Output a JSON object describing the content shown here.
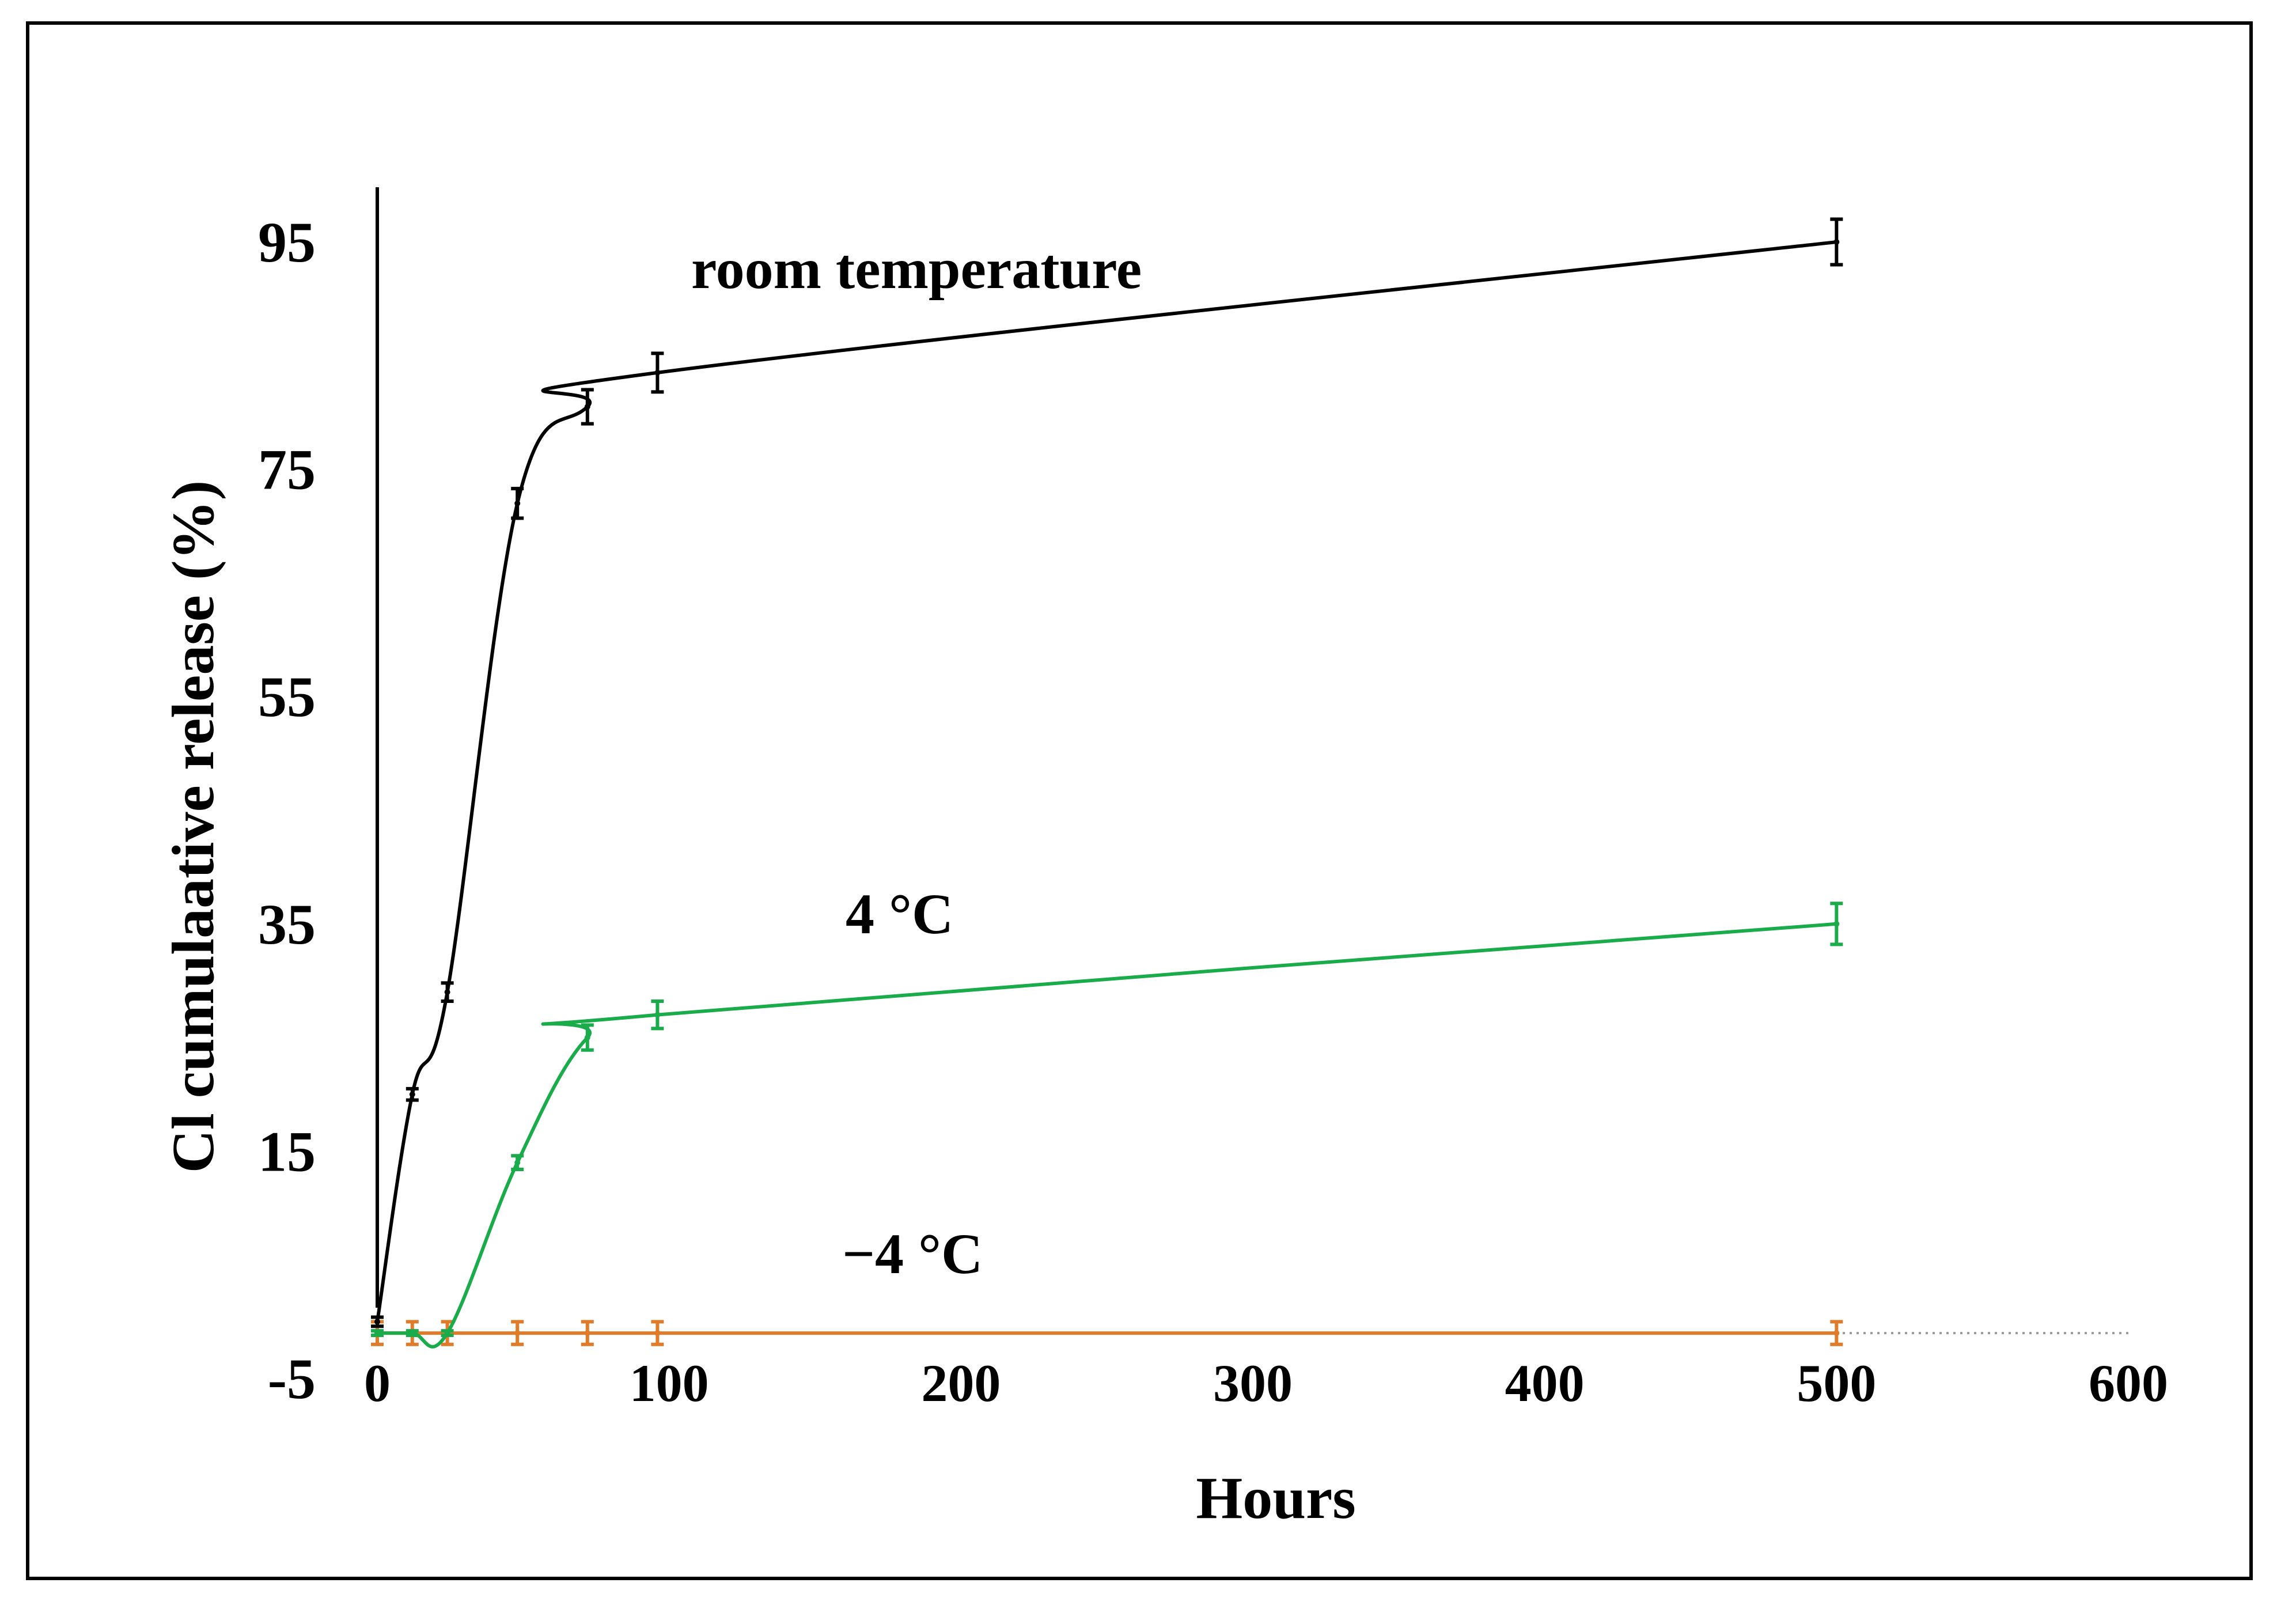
{
  "chart_data": {
    "type": "line",
    "xlabel": "Hours",
    "ylabel": "Cl cumulaative release (%)",
    "xlim": [
      0,
      600
    ],
    "ylim": [
      -5,
      100
    ],
    "x_ticks": [
      0,
      100,
      200,
      300,
      400,
      500,
      600
    ],
    "y_ticks": [
      -5,
      15,
      35,
      55,
      75,
      95
    ],
    "x_tick_labels": [
      "0",
      "100",
      "200",
      "300",
      "400",
      "500",
      "600"
    ],
    "y_tick_labels": [
      "-5",
      "15",
      "35",
      "55",
      "75",
      "95"
    ],
    "grid": false,
    "legend": "none",
    "series": [
      {
        "name": "room temperature",
        "color": "#000000",
        "x": [
          0,
          12,
          24,
          48,
          72,
          96,
          500
        ],
        "y": [
          0,
          20,
          29,
          72,
          80.5,
          83.5,
          95
        ],
        "error": [
          0.4,
          0.5,
          0.8,
          1.3,
          1.5,
          1.7,
          2.0
        ]
      },
      {
        "name": "4 °C",
        "color": "#1aab4b",
        "x": [
          0,
          12,
          24,
          48,
          72,
          96,
          500
        ],
        "y": [
          -1,
          -1,
          -1,
          14,
          25,
          27,
          35
        ],
        "error": [
          0.2,
          0.2,
          0.2,
          0.6,
          1.1,
          1.2,
          1.8
        ]
      },
      {
        "name": "−4 °C",
        "color": "#e07b2a",
        "x": [
          0,
          12,
          24,
          48,
          72,
          96,
          500
        ],
        "y": [
          -1,
          -1,
          -1,
          -1,
          -1,
          -1,
          -1
        ],
        "error": [
          1.0,
          1.0,
          1.0,
          1.0,
          1.0,
          1.0,
          1.0
        ]
      }
    ],
    "annotations": [
      {
        "text": "room temperature",
        "series": 0
      },
      {
        "text": "4 °C",
        "series": 1
      },
      {
        "text": "−4 °C",
        "series": 2
      }
    ]
  }
}
